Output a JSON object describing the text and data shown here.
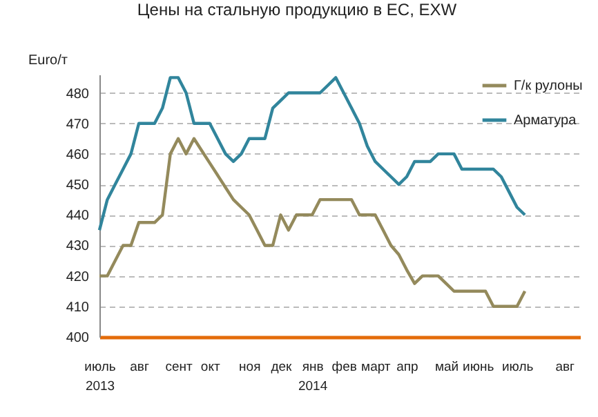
{
  "chart_data": {
    "type": "line",
    "title": "Цены на стальную продукцию в ЕС, EXW",
    "ylabel": "Euro/т",
    "categories": [
      "июль 2013",
      null,
      null,
      null,
      null,
      "авг",
      null,
      null,
      null,
      null,
      "сент",
      null,
      null,
      null,
      "окт",
      null,
      null,
      null,
      null,
      "ноя",
      null,
      null,
      null,
      "дек",
      null,
      null,
      null,
      "янв 2014",
      null,
      null,
      null,
      "фев",
      null,
      null,
      null,
      "март",
      null,
      null,
      null,
      "апр",
      null,
      null,
      null,
      null,
      "май",
      null,
      null,
      null,
      "июнь",
      null,
      null,
      null,
      null,
      "июль",
      null,
      null,
      null,
      null,
      null,
      "авг",
      null,
      null
    ],
    "series": [
      {
        "name": "Г/к рулоны",
        "color": "#948a5c",
        "values": [
          420,
          420,
          425,
          430,
          430,
          437.5,
          437.5,
          437.5,
          440,
          460,
          465,
          460,
          465,
          461,
          457,
          453,
          449,
          445,
          442.5,
          440,
          435,
          430,
          430,
          440,
          435,
          440,
          440,
          440,
          445,
          445,
          445,
          445,
          445,
          440,
          440,
          440,
          435,
          430,
          427,
          422,
          417.5,
          420,
          420,
          420,
          417.5,
          415,
          415,
          415,
          415,
          415,
          410,
          410,
          410,
          410,
          415,
          null,
          null,
          null,
          null,
          null,
          null,
          null
        ]
      },
      {
        "name": "Арматура",
        "color": "#31859c",
        "values": [
          435,
          445,
          450,
          455,
          460,
          470,
          470,
          470,
          475,
          485,
          485,
          480,
          470,
          470,
          470,
          465,
          460,
          457.5,
          460,
          465,
          465,
          465,
          475,
          477.5,
          480,
          480,
          480,
          480,
          480,
          482.5,
          485,
          480,
          475,
          470,
          462.5,
          457.5,
          455,
          452.5,
          450,
          452.5,
          457.5,
          457.5,
          457.5,
          460,
          460,
          460,
          455,
          455,
          455,
          455,
          455,
          452.5,
          447.5,
          442.5,
          440,
          null,
          null,
          null,
          null,
          null,
          null,
          null
        ]
      }
    ],
    "ylim": [
      400,
      486
    ],
    "yticks": [
      400,
      410,
      420,
      430,
      440,
      450,
      460,
      470,
      480
    ],
    "grid": "y",
    "legend": "top right"
  }
}
